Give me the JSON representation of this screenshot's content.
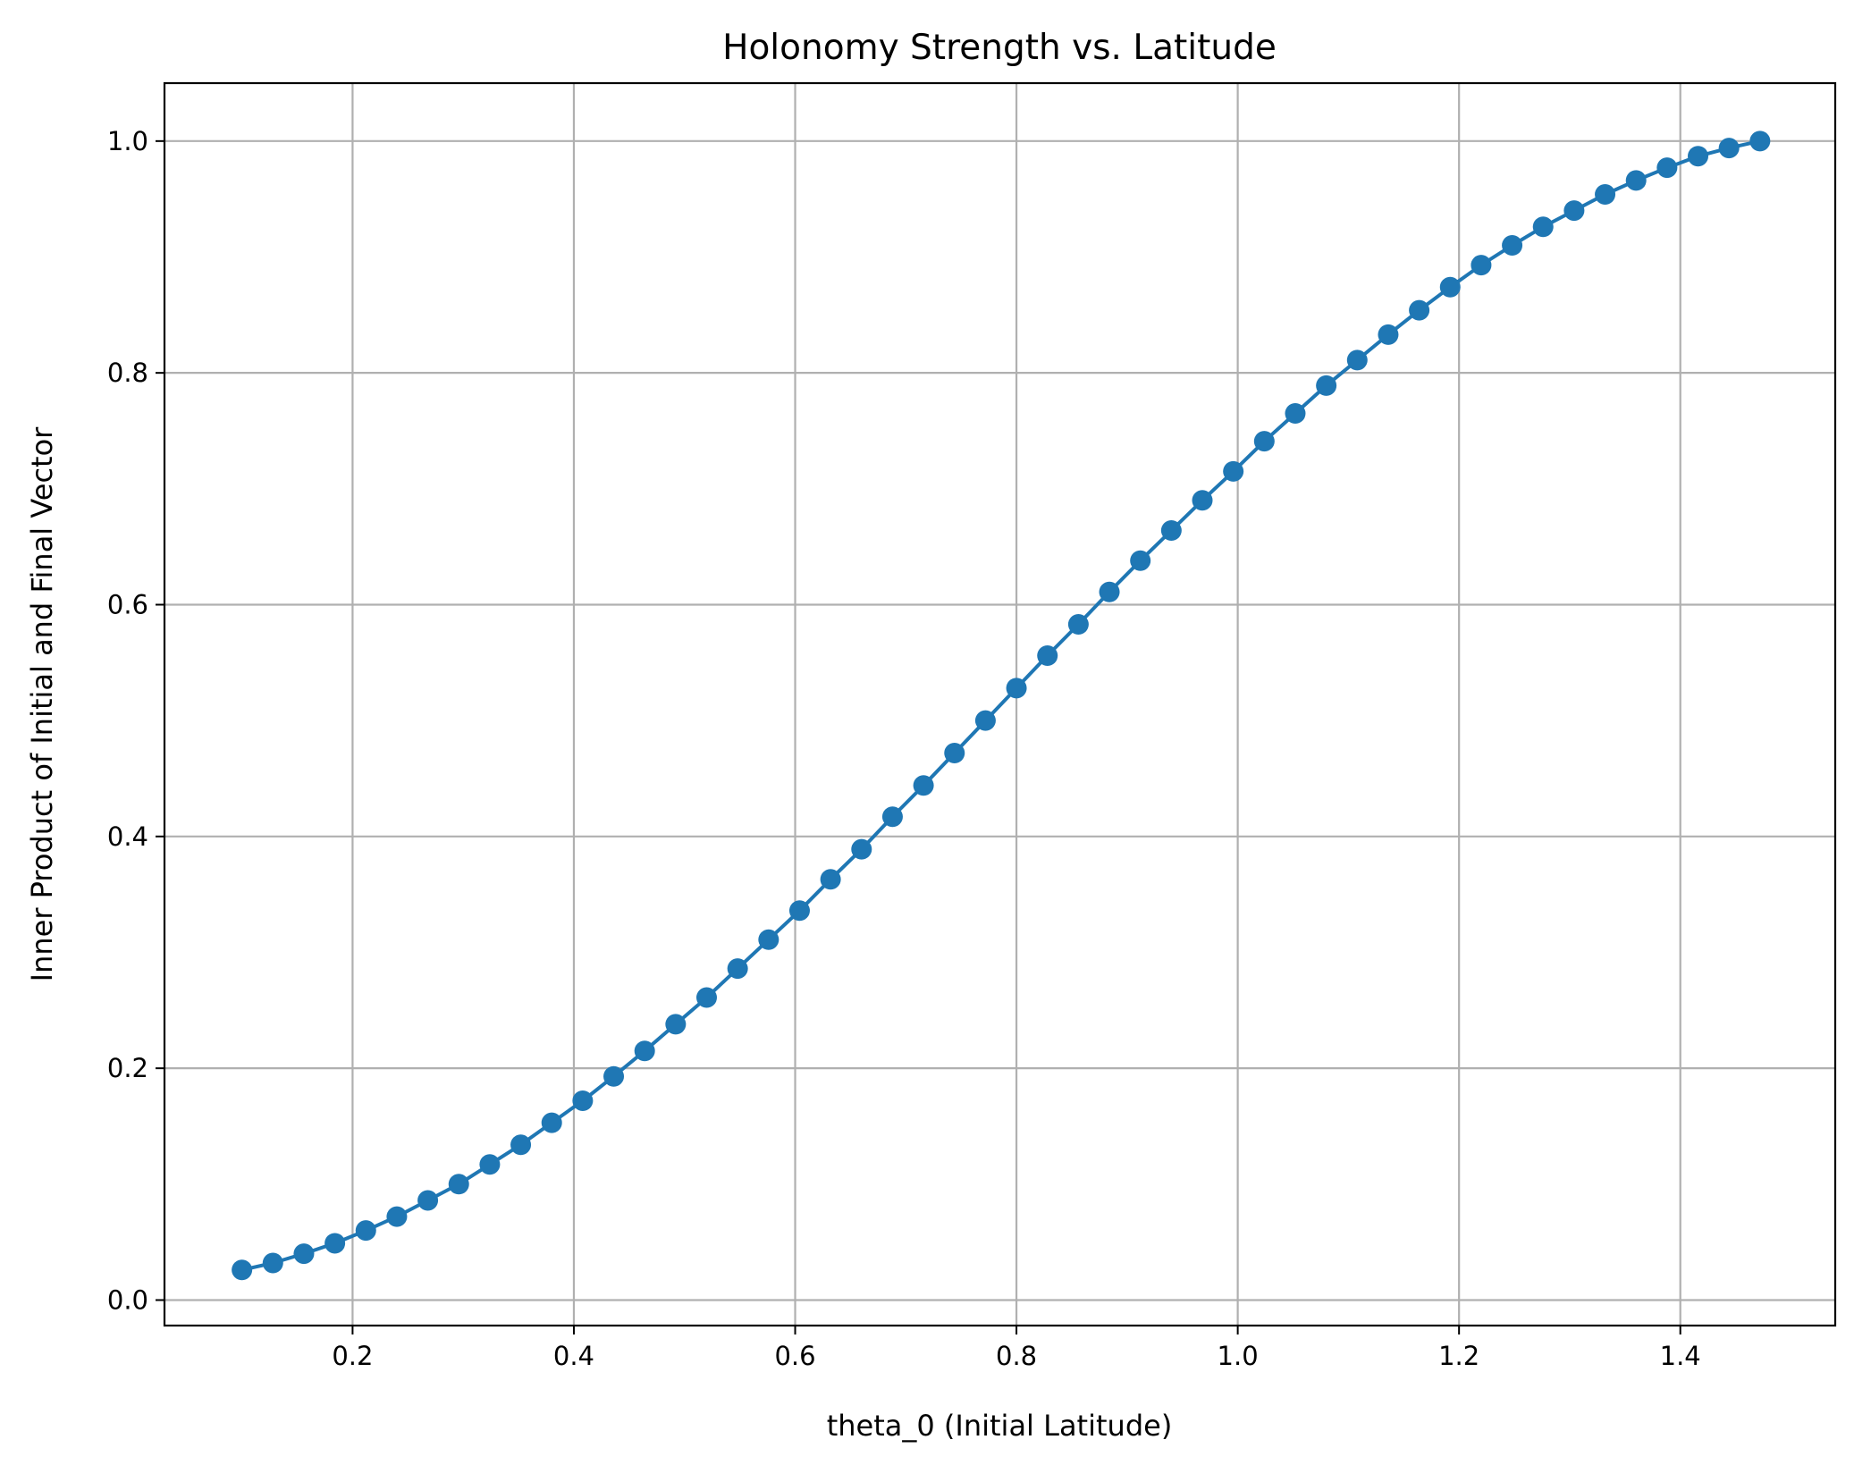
{
  "chart_data": {
    "type": "line",
    "title": "Holonomy Strength vs. Latitude",
    "xlabel": "theta_0 (Initial Latitude)",
    "ylabel": "Inner Product of Initial and Final Vector",
    "xlim": [
      0.03,
      1.54
    ],
    "ylim": [
      -0.022,
      1.05
    ],
    "xticks": [
      0.2,
      0.4,
      0.6,
      0.8,
      1.0,
      1.2,
      1.4
    ],
    "xtick_labels": [
      "0.2",
      "0.4",
      "0.6",
      "0.8",
      "1.0",
      "1.2",
      "1.4"
    ],
    "yticks": [
      0.0,
      0.2,
      0.4,
      0.6,
      0.8,
      1.0
    ],
    "ytick_labels": [
      "0.0",
      "0.2",
      "0.4",
      "0.6",
      "0.8",
      "1.0"
    ],
    "grid": true,
    "marker": "circle",
    "color": "#1f77b4",
    "series": [
      {
        "x": [
          0.1,
          0.128,
          0.156,
          0.184,
          0.212,
          0.24,
          0.268,
          0.296,
          0.324,
          0.352,
          0.38,
          0.408,
          0.436,
          0.464,
          0.492,
          0.52,
          0.548,
          0.576,
          0.604,
          0.632,
          0.66,
          0.688,
          0.716,
          0.744,
          0.772,
          0.8,
          0.828,
          0.856,
          0.884,
          0.912,
          0.94,
          0.968,
          0.996,
          1.024,
          1.052,
          1.08,
          1.108,
          1.136,
          1.164,
          1.192,
          1.22,
          1.248,
          1.276,
          1.304,
          1.332,
          1.36,
          1.388,
          1.416,
          1.444,
          1.472
        ],
        "y": [
          0.026,
          0.032,
          0.04,
          0.049,
          0.06,
          0.072,
          0.086,
          0.1,
          0.117,
          0.134,
          0.153,
          0.172,
          0.193,
          0.215,
          0.238,
          0.261,
          0.286,
          0.311,
          0.336,
          0.363,
          0.389,
          0.417,
          0.444,
          0.472,
          0.5,
          0.528,
          0.556,
          0.583,
          0.611,
          0.638,
          0.664,
          0.69,
          0.715,
          0.741,
          0.765,
          0.789,
          0.811,
          0.833,
          0.854,
          0.874,
          0.893,
          0.91,
          0.926,
          0.94,
          0.954,
          0.966,
          0.977,
          0.987,
          0.994,
          1.0
        ]
      }
    ]
  }
}
